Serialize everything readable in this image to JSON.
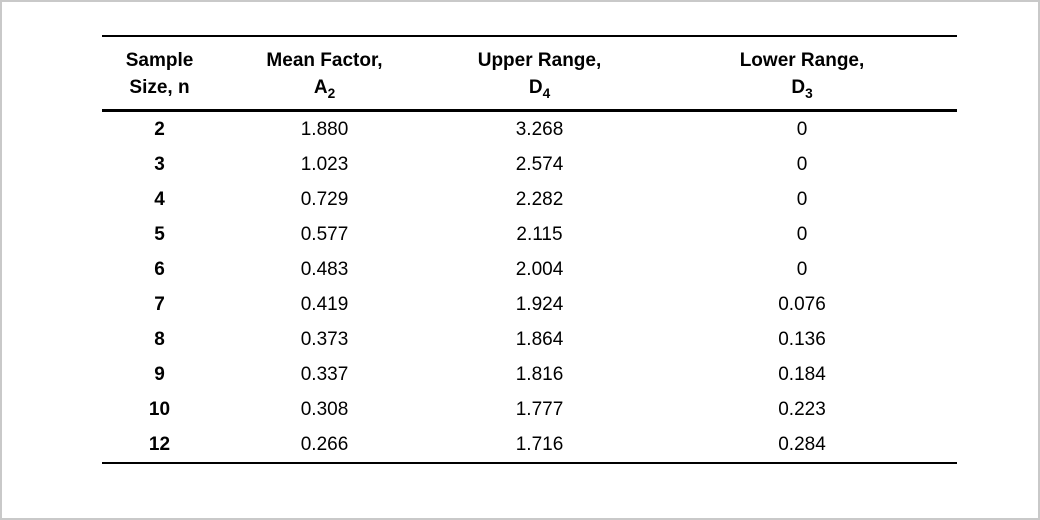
{
  "colors": {
    "frame_border": "#c9c9c9",
    "rule": "#000000",
    "text": "#000000",
    "background": "#ffffff"
  },
  "table": {
    "columns": [
      {
        "header_line1": "Sample",
        "header_line2": "Size, n",
        "subscript": ""
      },
      {
        "header_line1": "Mean Factor,",
        "header_line2": "A",
        "subscript": "2"
      },
      {
        "header_line1": "Upper Range,",
        "header_line2": "D",
        "subscript": "4"
      },
      {
        "header_line1": "Lower Range,",
        "header_line2": "D",
        "subscript": "3"
      }
    ],
    "rows": [
      [
        "2",
        "1.880",
        "3.268",
        "0"
      ],
      [
        "3",
        "1.023",
        "2.574",
        "0"
      ],
      [
        "4",
        "0.729",
        "2.282",
        "0"
      ],
      [
        "5",
        "0.577",
        "2.115",
        "0"
      ],
      [
        "6",
        "0.483",
        "2.004",
        "0"
      ],
      [
        "7",
        "0.419",
        "1.924",
        "0.076"
      ],
      [
        "8",
        "0.373",
        "1.864",
        "0.136"
      ],
      [
        "9",
        "0.337",
        "1.816",
        "0.184"
      ],
      [
        "10",
        "0.308",
        "1.777",
        "0.223"
      ],
      [
        "12",
        "0.266",
        "1.716",
        "0.284"
      ]
    ]
  }
}
